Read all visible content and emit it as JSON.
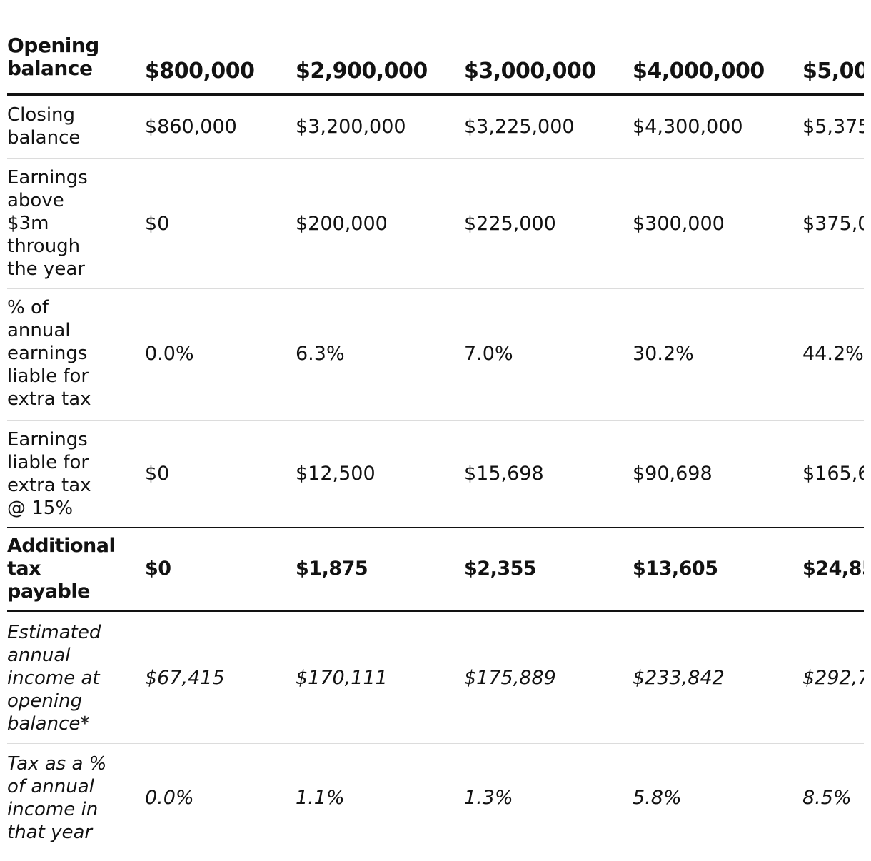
{
  "table": {
    "header": {
      "label": "Opening balance",
      "values": [
        "$800,000",
        "$2,900,000",
        "$3,000,000",
        "$4,000,000",
        "$5,00"
      ]
    },
    "rows": [
      {
        "id": "closing-balance",
        "label": "Closing balance",
        "values": [
          "$860,000",
          "$3,200,000",
          "$3,225,000",
          "$4,300,000",
          "$5,375,"
        ]
      },
      {
        "id": "earnings-above-3m",
        "label": "Earnings above $3m through the year",
        "values": [
          "$0",
          "$200,000",
          "$225,000",
          "$300,000",
          "$375,0"
        ]
      },
      {
        "id": "pct-liable",
        "label": "% of annual earnings liable for extra tax",
        "values": [
          "0.0%",
          "6.3%",
          "7.0%",
          "30.2%",
          "44.2%"
        ]
      },
      {
        "id": "earnings-liable",
        "label": "Earnings liable for extra tax @ 15%",
        "values": [
          "$0",
          "$12,500",
          "$15,698",
          "$90,698",
          "$165,6"
        ]
      },
      {
        "id": "additional-tax",
        "label": "Additional tax payable",
        "values": [
          "$0",
          "$1,875",
          "$2,355",
          "$13,605",
          "$24,85"
        ]
      },
      {
        "id": "estimated-income",
        "label": "Estimated annual income at opening balance*",
        "values": [
          "$67,415",
          "$170,111",
          "$175,889",
          "$233,842",
          "$292,7"
        ]
      },
      {
        "id": "tax-pct-income",
        "label": "Tax as a % of annual income in that year",
        "values": [
          "0.0%",
          "1.1%",
          "1.3%",
          "5.8%",
          "8.5%"
        ]
      }
    ]
  }
}
